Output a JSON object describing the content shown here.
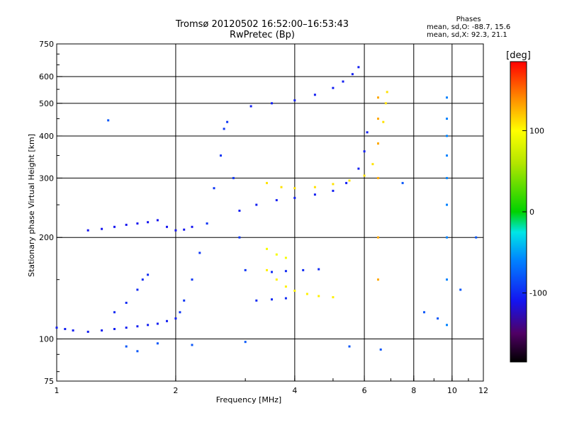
{
  "title": {
    "line1": "Tromsø 20120502 16:52:00–16:53:43",
    "line2": "RwPretec (Bp)"
  },
  "phases": {
    "heading": "Phases",
    "line_o": "mean, sd,O: -88.7, 15.6",
    "line_x": "mean, sd,X:  92.3, 21.1"
  },
  "colorbar": {
    "unit_label": "[deg]",
    "ticks": [
      {
        "value": 100,
        "label": "100"
      },
      {
        "value": 0,
        "label": "0"
      },
      {
        "value": -100,
        "label": "-100"
      }
    ],
    "range": [
      -185,
      185
    ]
  },
  "chart_data": {
    "type": "scatter",
    "xlabel": "Frequency [MHz]",
    "ylabel": "Stationary phase Virtual Height [km]",
    "x_scale": "log",
    "y_scale": "log",
    "xlim": [
      1,
      12
    ],
    "ylim": [
      75,
      750
    ],
    "grid": true,
    "x_grid": [
      2,
      4,
      6,
      8,
      10
    ],
    "y_grid": [
      100,
      200,
      300,
      400,
      500,
      600
    ],
    "x_ticks": [
      {
        "v": 1,
        "label": "1"
      },
      {
        "v": 2,
        "label": "2"
      },
      {
        "v": 4,
        "label": "4"
      },
      {
        "v": 6,
        "label": "6"
      },
      {
        "v": 8,
        "label": "8"
      },
      {
        "v": 10,
        "label": "10"
      },
      {
        "v": 12,
        "label": "12"
      }
    ],
    "y_ticks": [
      {
        "v": 75,
        "label": "75"
      },
      {
        "v": 100,
        "label": "100"
      },
      {
        "v": 200,
        "label": "200"
      },
      {
        "v": 300,
        "label": "300"
      },
      {
        "v": 400,
        "label": "400"
      },
      {
        "v": 500,
        "label": "500"
      },
      {
        "v": 600,
        "label": "600"
      },
      {
        "v": 750,
        "label": "750"
      }
    ],
    "series": [
      {
        "color_phase": -105,
        "points": [
          [
            1.0,
            108
          ],
          [
            1.05,
            107
          ],
          [
            1.1,
            106
          ],
          [
            1.2,
            105
          ],
          [
            1.3,
            106
          ],
          [
            1.4,
            107
          ],
          [
            1.5,
            108
          ],
          [
            1.6,
            109
          ],
          [
            1.7,
            110
          ],
          [
            1.8,
            111
          ],
          [
            1.9,
            113
          ],
          [
            2.0,
            115
          ]
        ]
      },
      {
        "color_phase": -100,
        "points": [
          [
            1.4,
            120
          ],
          [
            1.5,
            128
          ],
          [
            1.6,
            140
          ],
          [
            1.65,
            150
          ],
          [
            1.7,
            155
          ]
        ]
      },
      {
        "color_phase": -110,
        "points": [
          [
            1.2,
            210
          ],
          [
            1.3,
            212
          ],
          [
            1.4,
            215
          ],
          [
            1.5,
            218
          ],
          [
            1.6,
            220
          ],
          [
            1.7,
            222
          ],
          [
            1.8,
            225
          ],
          [
            1.9,
            215
          ],
          [
            2.0,
            210
          ],
          [
            2.1,
            211
          ],
          [
            2.2,
            215
          ]
        ]
      },
      {
        "color_phase": -95,
        "points": [
          [
            2.05,
            120
          ],
          [
            2.1,
            130
          ],
          [
            2.2,
            150
          ],
          [
            2.3,
            180
          ],
          [
            2.4,
            220
          ],
          [
            2.5,
            280
          ],
          [
            2.6,
            350
          ],
          [
            2.65,
            420
          ],
          [
            2.7,
            440
          ],
          [
            2.8,
            300
          ],
          [
            2.9,
            200
          ],
          [
            3.0,
            160
          ]
        ]
      },
      {
        "color_phase": -105,
        "points": [
          [
            2.9,
            240
          ],
          [
            3.2,
            250
          ],
          [
            3.6,
            258
          ],
          [
            4.0,
            262
          ],
          [
            4.5,
            268
          ],
          [
            5.0,
            275
          ],
          [
            5.4,
            290
          ],
          [
            5.8,
            320
          ],
          [
            6.0,
            360
          ],
          [
            6.1,
            410
          ]
        ]
      },
      {
        "color_phase": -105,
        "points": [
          [
            3.1,
            490
          ],
          [
            3.5,
            500
          ],
          [
            4.0,
            510
          ],
          [
            4.5,
            530
          ],
          [
            5.0,
            555
          ],
          [
            5.3,
            580
          ],
          [
            5.6,
            610
          ],
          [
            5.8,
            640
          ]
        ]
      },
      {
        "color_phase": 110,
        "points": [
          [
            3.4,
            290
          ],
          [
            3.7,
            282
          ],
          [
            4.0,
            280
          ],
          [
            4.5,
            282
          ],
          [
            5.0,
            288
          ],
          [
            5.5,
            295
          ],
          [
            6.0,
            305
          ],
          [
            6.3,
            330
          ],
          [
            6.5,
            380
          ],
          [
            6.7,
            440
          ],
          [
            6.8,
            500
          ],
          [
            6.85,
            540
          ]
        ]
      },
      {
        "color_phase": 105,
        "points": [
          [
            3.4,
            160
          ],
          [
            3.6,
            150
          ],
          [
            3.8,
            143
          ],
          [
            4.0,
            139
          ],
          [
            4.3,
            136
          ],
          [
            4.6,
            134
          ],
          [
            5.0,
            133
          ]
        ]
      },
      {
        "color_phase": 95,
        "points": [
          [
            3.4,
            185
          ],
          [
            3.6,
            178
          ],
          [
            3.8,
            174
          ]
        ]
      },
      {
        "color_phase": -100,
        "points": [
          [
            3.5,
            158
          ],
          [
            3.8,
            159
          ],
          [
            4.2,
            160
          ],
          [
            4.6,
            161
          ]
        ]
      },
      {
        "color_phase": -100,
        "points": [
          [
            3.2,
            130
          ],
          [
            3.5,
            131
          ],
          [
            3.8,
            132
          ]
        ]
      },
      {
        "color_phase": -60,
        "points": [
          [
            9.7,
            520
          ],
          [
            9.7,
            450
          ],
          [
            9.7,
            400
          ],
          [
            9.7,
            350
          ],
          [
            9.7,
            300
          ],
          [
            9.7,
            250
          ],
          [
            9.7,
            200
          ],
          [
            9.7,
            150
          ],
          [
            9.7,
            110
          ]
        ]
      },
      {
        "color_phase": 130,
        "points": [
          [
            6.5,
            520
          ],
          [
            6.5,
            450
          ],
          [
            6.5,
            380
          ],
          [
            6.5,
            300
          ],
          [
            6.5,
            200
          ],
          [
            6.5,
            150
          ]
        ]
      },
      {
        "color_phase": -80,
        "points": [
          [
            1.35,
            445
          ],
          [
            1.5,
            95
          ],
          [
            1.6,
            92
          ],
          [
            1.8,
            97
          ],
          [
            2.2,
            96
          ],
          [
            3.0,
            98
          ],
          [
            5.5,
            95
          ],
          [
            6.6,
            93
          ],
          [
            7.5,
            290
          ],
          [
            8.5,
            120
          ],
          [
            9.2,
            115
          ],
          [
            10.5,
            140
          ],
          [
            11.5,
            200
          ]
        ]
      }
    ]
  }
}
